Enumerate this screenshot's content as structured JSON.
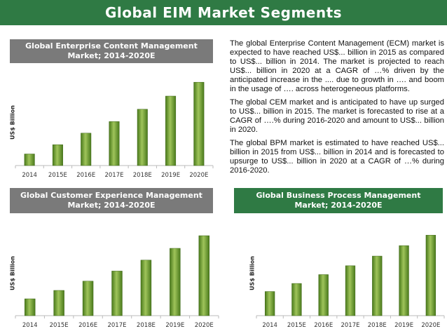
{
  "page": {
    "title": "Global EIM Market Segments"
  },
  "colors": {
    "header": "#2f7a44",
    "chart_title_gray": "#7a7a7a",
    "bar": "#6b9a2f",
    "bar_dark": "#4a7a1c",
    "bar_light": "#9fc45a"
  },
  "text": {
    "p1": "The global Enterprise Content Management (ECM) market is expected to have reached US$... billion in 2015 as compared to US$... billion in 2014. The market is projected to reach US$... billion in 2020 at a CAGR of …% driven by the anticipated increase in the .... due to growth in …. and boom in the usage of …. across heterogeneous platforms.",
    "p2": "The global CEM market and is anticipated to have up surged to US$... billion in 2015. The market is forecasted to rise at a CAGR of ….% during 2016-2020 and amount to US$... billion in 2020.",
    "p3": "The global BPM market is estimated to have reached US$... billion in 2015 from US$... billion in 2014 and is forecasted to upsurge to US$... billion in 2020 at a CAGR of …% during 2016-2020."
  },
  "chart_data": [
    {
      "type": "bar",
      "title_line1": "Global Enterprise Content Management",
      "title_line2": "Market; 2014-2020E",
      "categories": [
        "2014",
        "2015E",
        "2016E",
        "2017E",
        "2018E",
        "2019E",
        "2020E"
      ],
      "values": [
        15,
        27,
        42,
        57,
        73,
        90,
        108
      ],
      "ylabel": "US$ Billion",
      "ylim": [
        0,
        120
      ]
    },
    {
      "type": "bar",
      "title_line1": "Global Customer Experience Management",
      "title_line2": "Market; 2014-2020E",
      "categories": [
        "2014",
        "2015E",
        "2016E",
        "2017E",
        "2018E",
        "2019E",
        "2020E"
      ],
      "values": [
        20,
        30,
        41,
        53,
        66,
        80,
        95
      ],
      "ylabel": "US$ Billion",
      "ylim": [
        0,
        110
      ]
    },
    {
      "type": "bar",
      "title_line1": "Global Business Process Management",
      "title_line2": "Market; 2014-2020E",
      "categories": [
        "2014",
        "2015E",
        "2016E",
        "2017E",
        "2018E",
        "2019E",
        "2020E"
      ],
      "values": [
        30,
        40,
        51,
        62,
        74,
        87,
        100
      ],
      "ylabel": "US$ Billion",
      "ylim": [
        0,
        115
      ]
    }
  ]
}
